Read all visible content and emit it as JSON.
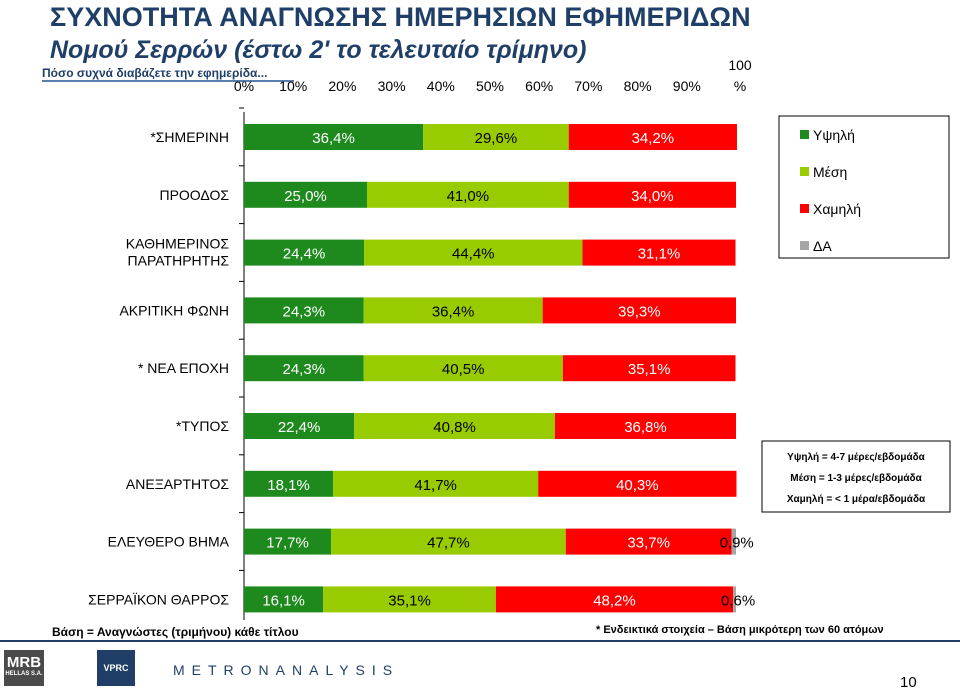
{
  "title": {
    "line1": "ΣΥΧΝΟΤΗΤΑ ΑΝΑΓΝΩΣΗΣ ΗΜΕΡΗΣΙΩΝ ΕΦΗΜΕΡΙΔΩΝ",
    "line2": "Νομού Σερρών (έστω 2' το τελευταίο τρίμηνο)",
    "question": "Πόσο συχνά διαβάζετε την εφημερίδα..."
  },
  "chart_data": {
    "type": "bar",
    "orientation": "horizontal",
    "stacked": true,
    "xlim": [
      0,
      100
    ],
    "x_ticks": [
      "0%",
      "10%",
      "20%",
      "30%",
      "40%",
      "50%",
      "60%",
      "70%",
      "80%",
      "90%",
      "100 %"
    ],
    "categories": [
      "*ΣΗΜΕΡΙΝΗ",
      "ΠΡΟΟΔΟΣ",
      "ΚΑΘΗΜΕΡΙΝΟΣ ΠΑΡΑΤΗΡΗΤΗΣ",
      "ΑΚΡΙΤΙΚΗ ΦΩΝΗ",
      "* ΝΕΑ ΕΠΟΧΗ",
      "*ΤΥΠΟΣ",
      "ΑΝΕΞΑΡΤΗΤΟΣ",
      "ΕΛΕΥΘΕΡΟ ΒΗΜΑ",
      "ΣΕΡΡΑΪΚΟΝ ΘΑΡΡΟΣ"
    ],
    "series": [
      {
        "name": "Υψηλή",
        "color": "#1e8a1e",
        "values": [
          36.4,
          25.0,
          24.4,
          24.3,
          24.3,
          22.4,
          18.1,
          17.7,
          16.1
        ],
        "labels": [
          "36,4%",
          "25,0%",
          "24,4%",
          "24,3%",
          "24,3%",
          "22,4%",
          "18,1%",
          "17,7%",
          "16,1%"
        ]
      },
      {
        "name": "Μέση",
        "color": "#99cc00",
        "values": [
          29.6,
          41.0,
          44.4,
          36.4,
          40.5,
          40.8,
          41.7,
          47.7,
          35.1
        ],
        "labels": [
          "29,6%",
          "41,0%",
          "44,4%",
          "36,4%",
          "40,5%",
          "40,8%",
          "41,7%",
          "47,7%",
          "35,1%"
        ]
      },
      {
        "name": "Χαμηλή",
        "color": "#ff0000",
        "values": [
          34.2,
          34.0,
          31.1,
          39.3,
          35.1,
          36.8,
          40.3,
          33.7,
          48.2
        ],
        "labels": [
          "34,2%",
          "34,0%",
          "31,1%",
          "39,3%",
          "35,1%",
          "36,8%",
          "40,3%",
          "33,7%",
          "48,2%"
        ]
      },
      {
        "name": "ΔΑ",
        "color": "#a6a6a6",
        "values": [
          0,
          0,
          0,
          0,
          0,
          0,
          0,
          0.9,
          0.6
        ],
        "labels": [
          "",
          "",
          "",
          "",
          "",
          "",
          "",
          "0,9%",
          "0,6%"
        ]
      }
    ],
    "legend_position": "top-right",
    "definitions": [
      "Υψηλή = 4-7 μέρες/εβδομάδα",
      "Μέση = 1-3 μέρες/εβδομάδα",
      "Χαμηλή = < 1 μέρα/εβδομάδα"
    ]
  },
  "footer": {
    "base": "Βάση = Αναγνώστες (τριμήνου) κάθε τίτλου",
    "note": "* Ενδεικτικά στοιχεία – Βάση μικρότερη των 60 ατόμων",
    "page_number": "10"
  },
  "logos": {
    "mrb": "MRB",
    "mrb_sub": "HELLAS S.A.",
    "vprc": "VPRC",
    "metron": "METRONANALYSIS"
  }
}
